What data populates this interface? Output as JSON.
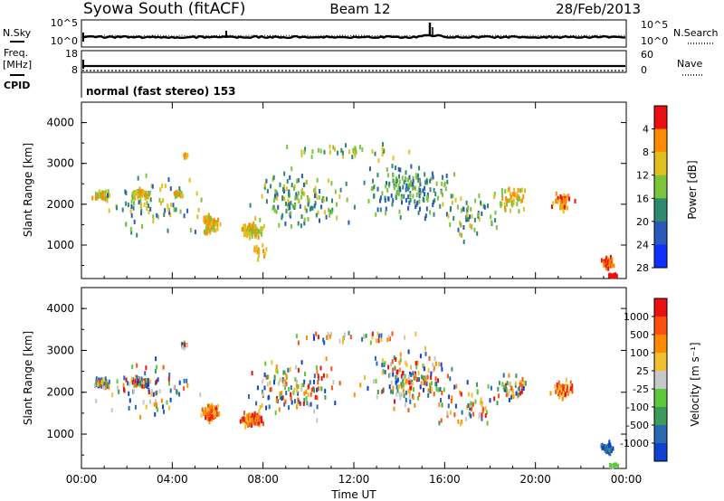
{
  "header": {
    "station": "Syowa South (fitACF)",
    "beam": "Beam 12",
    "date": "28/Feb/2013"
  },
  "status_panel": {
    "left_labels": {
      "nsky": "N.Sky",
      "nsky_hi": "10^5",
      "nsky_lo": "10^0",
      "freq": "Freq.",
      "freq_unit": "[MHz]",
      "freq_hi": "18",
      "freq_lo": "8",
      "cpid": "CPID"
    },
    "right_labels": {
      "nsearch_hi": "10^5",
      "nsearch_lo": "10^0",
      "nsearch": "N.Search",
      "nave_hi": "60",
      "nave_lo": "0",
      "nave": "Nave"
    },
    "cpid_text": "normal (fast stereo) 153"
  },
  "chart_data": [
    {
      "type": "scatter",
      "name": "power-panel",
      "title": "",
      "ylabel": "Slant Range [km]",
      "xlabel": "",
      "xlim": [
        0,
        24
      ],
      "ylim": [
        180,
        4500
      ],
      "yticks": [
        "1000",
        "2000",
        "3000",
        "4000"
      ],
      "colorbar": {
        "label": "Power [dB]",
        "ticks": [
          "4",
          "8",
          "12",
          "16",
          "20",
          "24",
          "28"
        ],
        "colors": [
          "#1030ff",
          "#2a5ab8",
          "#2e8a6e",
          "#7cc43a",
          "#e0c020",
          "#ff8c00",
          "#e81010"
        ]
      },
      "clusters": [
        {
          "tc": 0.9,
          "rc": 2200,
          "n": 45,
          "ts": 0.5,
          "rs": 180,
          "cl": [
            3,
            5
          ]
        },
        {
          "tc": 2.6,
          "rc": 2250,
          "n": 50,
          "ts": 0.6,
          "rs": 150,
          "cl": [
            3,
            5
          ]
        },
        {
          "tc": 4.3,
          "rc": 2250,
          "n": 20,
          "ts": 0.3,
          "rs": 100,
          "cl": [
            3,
            5
          ]
        },
        {
          "tc": 4.6,
          "rc": 3200,
          "n": 8,
          "ts": 0.2,
          "rs": 80,
          "cl": [
            4,
            5
          ]
        },
        {
          "tc": 5.7,
          "rc": 1500,
          "n": 80,
          "ts": 0.5,
          "rs": 260,
          "cl": [
            3,
            5
          ]
        },
        {
          "tc": 7.5,
          "rc": 1350,
          "n": 110,
          "ts": 0.6,
          "rs": 220,
          "cl": [
            3,
            5
          ]
        },
        {
          "tc": 7.8,
          "rc": 800,
          "n": 15,
          "ts": 0.5,
          "rs": 250,
          "cl": [
            4,
            5
          ]
        },
        {
          "tc": 3.0,
          "rc": 2000,
          "n": 80,
          "ts": 3.0,
          "rs": 900,
          "cl": [
            1,
            4
          ]
        },
        {
          "tc": 9.5,
          "rc": 2100,
          "n": 140,
          "ts": 2.8,
          "rs": 850,
          "cl": [
            1,
            4
          ]
        },
        {
          "tc": 14.5,
          "rc": 2300,
          "n": 170,
          "ts": 2.8,
          "rs": 900,
          "cl": [
            1,
            3
          ]
        },
        {
          "tc": 12.0,
          "rc": 3300,
          "n": 40,
          "ts": 4.0,
          "rs": 250,
          "cl": [
            2,
            4
          ]
        },
        {
          "tc": 19.0,
          "rc": 2100,
          "n": 50,
          "ts": 1.0,
          "rs": 400,
          "cl": [
            3,
            5
          ]
        },
        {
          "tc": 21.2,
          "rc": 2050,
          "n": 50,
          "ts": 0.6,
          "rs": 280,
          "cl": [
            4,
            6
          ]
        },
        {
          "tc": 17.0,
          "rc": 1700,
          "n": 60,
          "ts": 2.0,
          "rs": 700,
          "cl": [
            1,
            4
          ]
        },
        {
          "tc": 23.2,
          "rc": 560,
          "n": 40,
          "ts": 0.35,
          "rs": 190,
          "cl": [
            5,
            6
          ]
        },
        {
          "tc": 23.4,
          "rc": 250,
          "n": 22,
          "ts": 0.3,
          "rs": 40,
          "cl": [
            6,
            6
          ]
        }
      ]
    },
    {
      "type": "scatter",
      "name": "velocity-panel",
      "title": "",
      "ylabel": "Slant Range [km]",
      "xlabel": "Time UT",
      "xlim": [
        0,
        24
      ],
      "ylim": [
        180,
        4500
      ],
      "xticks": [
        "00:00",
        "04:00",
        "08:00",
        "12:00",
        "16:00",
        "20:00",
        "00:00"
      ],
      "yticks": [
        "1000",
        "2000",
        "3000",
        "4000"
      ],
      "colorbar": {
        "label": "Velocity [m s⁻¹]",
        "ticks": [
          "1000",
          "500",
          "100",
          "25",
          "-25",
          "-100",
          "-500",
          "-1000"
        ],
        "colors": [
          "#1040d0",
          "#2a6ab0",
          "#3c9a5a",
          "#5cc83a",
          "#c8c8c8",
          "#f0c030",
          "#ff8c00",
          "#ff5010",
          "#e81010"
        ]
      },
      "clusters": [
        {
          "tc": 0.9,
          "rc": 2200,
          "n": 45,
          "ts": 0.5,
          "rs": 180,
          "cl": [
            0,
            8
          ]
        },
        {
          "tc": 2.6,
          "rc": 2250,
          "n": 50,
          "ts": 0.6,
          "rs": 150,
          "cl": [
            0,
            8
          ]
        },
        {
          "tc": 4.5,
          "rc": 3100,
          "n": 12,
          "ts": 0.3,
          "rs": 120,
          "cl": [
            0,
            8
          ]
        },
        {
          "tc": 5.7,
          "rc": 1500,
          "n": 80,
          "ts": 0.5,
          "rs": 260,
          "cl": [
            5,
            8
          ]
        },
        {
          "tc": 7.5,
          "rc": 1350,
          "n": 110,
          "ts": 0.6,
          "rs": 220,
          "cl": [
            5,
            8
          ]
        },
        {
          "tc": 3.0,
          "rc": 2000,
          "n": 80,
          "ts": 3.0,
          "rs": 900,
          "cl": [
            0,
            8
          ]
        },
        {
          "tc": 9.5,
          "rc": 2100,
          "n": 140,
          "ts": 2.8,
          "rs": 850,
          "cl": [
            0,
            8
          ]
        },
        {
          "tc": 14.5,
          "rc": 2300,
          "n": 170,
          "ts": 2.8,
          "rs": 900,
          "cl": [
            0,
            8
          ]
        },
        {
          "tc": 12.0,
          "rc": 3300,
          "n": 40,
          "ts": 4.0,
          "rs": 250,
          "cl": [
            0,
            8
          ]
        },
        {
          "tc": 19.0,
          "rc": 2100,
          "n": 50,
          "ts": 1.0,
          "rs": 400,
          "cl": [
            0,
            8
          ]
        },
        {
          "tc": 21.2,
          "rc": 2050,
          "n": 50,
          "ts": 0.6,
          "rs": 280,
          "cl": [
            5,
            8
          ]
        },
        {
          "tc": 17.0,
          "rc": 1700,
          "n": 60,
          "ts": 2.0,
          "rs": 700,
          "cl": [
            0,
            8
          ]
        },
        {
          "tc": 23.2,
          "rc": 650,
          "n": 40,
          "ts": 0.35,
          "rs": 190,
          "cl": [
            0,
            2
          ]
        },
        {
          "tc": 23.4,
          "rc": 250,
          "n": 22,
          "ts": 0.3,
          "rs": 40,
          "cl": [
            3,
            4
          ]
        }
      ]
    }
  ]
}
